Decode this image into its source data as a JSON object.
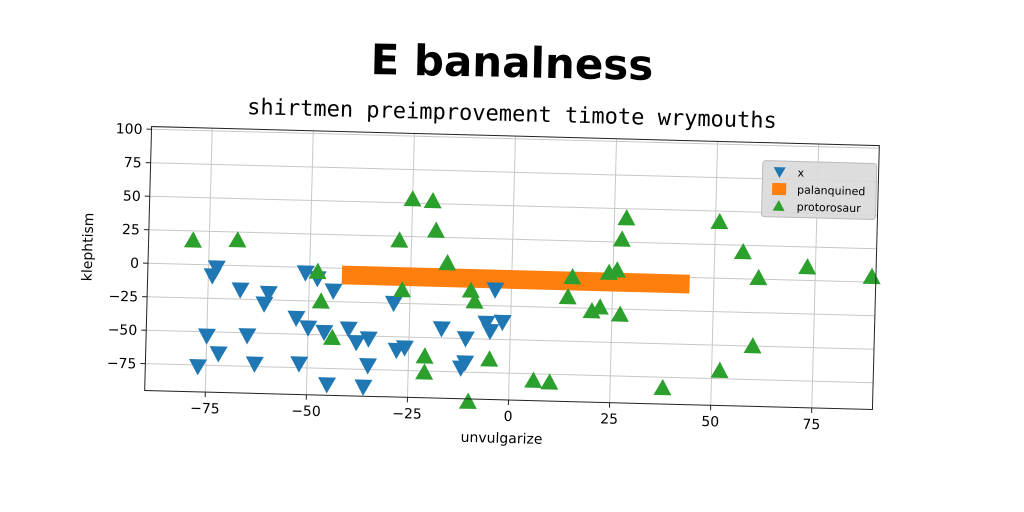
{
  "title": "E banalness",
  "subtitle": "shirtmen preimprovement timote wrymouths",
  "chart_data": {
    "type": "scatter",
    "xlabel": "unvulgarize",
    "ylabel": "klephtism",
    "xlim": [
      -90,
      90
    ],
    "ylim": [
      -95,
      102
    ],
    "xticks": [
      -75,
      -50,
      -25,
      0,
      25,
      50,
      75
    ],
    "yticks": [
      100,
      75,
      50,
      25,
      0,
      -25,
      -50,
      -75
    ],
    "grid": true,
    "legend_position": "top-right",
    "series": [
      {
        "name": "x",
        "marker": "triangle-down",
        "color": "#1f77b4",
        "points": [
          [
            -73,
            -2
          ],
          [
            -74,
            -8
          ],
          [
            -67,
            -18
          ],
          [
            -60,
            -20
          ],
          [
            -61,
            -28
          ],
          [
            -51,
            -4
          ],
          [
            -48,
            -8
          ],
          [
            -44,
            -17
          ],
          [
            -53,
            -38
          ],
          [
            -50,
            -45
          ],
          [
            -46,
            -48
          ],
          [
            -75,
            -53
          ],
          [
            -72,
            -66
          ],
          [
            -65,
            -52
          ],
          [
            -63,
            -73
          ],
          [
            -52,
            -72
          ],
          [
            -77,
            -76
          ],
          [
            -45,
            -87
          ],
          [
            -40,
            -45
          ],
          [
            -38,
            -55
          ],
          [
            -35,
            -52
          ],
          [
            -35,
            -72
          ],
          [
            -36,
            -88
          ],
          [
            -28,
            -60
          ],
          [
            -26,
            -58
          ],
          [
            -29,
            -25
          ],
          [
            -17,
            -43
          ],
          [
            -11,
            -50
          ],
          [
            -12,
            -72
          ],
          [
            -11,
            -68
          ],
          [
            -6,
            -38
          ],
          [
            -5,
            -44
          ],
          [
            -2,
            -37
          ],
          [
            -4,
            -13
          ]
        ]
      },
      {
        "name": "palanquined",
        "marker": "square",
        "color": "#ff7f0e",
        "band": {
          "x_from": -42,
          "x_to": 44,
          "y_top": 2,
          "y_bottom": -12
        }
      },
      {
        "name": "protorosaur",
        "marker": "triangle-up",
        "color": "#2ca02c",
        "points": [
          [
            -79,
            18
          ],
          [
            -68,
            19
          ],
          [
            -48,
            -3
          ],
          [
            -47,
            -25
          ],
          [
            -44,
            -52
          ],
          [
            -27,
            -15
          ],
          [
            -28,
            22
          ],
          [
            -25,
            53
          ],
          [
            -20,
            52
          ],
          [
            -19,
            30
          ],
          [
            -16,
            6
          ],
          [
            -21,
            -64
          ],
          [
            -21,
            -76
          ],
          [
            -10,
            -14
          ],
          [
            -9,
            -22
          ],
          [
            -10,
            -97
          ],
          [
            -5,
            -65
          ],
          [
            6,
            -80
          ],
          [
            10,
            -81
          ],
          [
            14,
            -17
          ],
          [
            15,
            -2
          ],
          [
            20,
            -27
          ],
          [
            22,
            -24
          ],
          [
            24,
            2
          ],
          [
            26,
            4
          ],
          [
            27,
            -29
          ],
          [
            27,
            27
          ],
          [
            28,
            43
          ],
          [
            51,
            42
          ],
          [
            57,
            20
          ],
          [
            61,
            1
          ],
          [
            60,
            -50
          ],
          [
            52,
            -69
          ],
          [
            38,
            -83
          ],
          [
            73,
            10
          ],
          [
            89,
            4
          ]
        ]
      }
    ]
  }
}
